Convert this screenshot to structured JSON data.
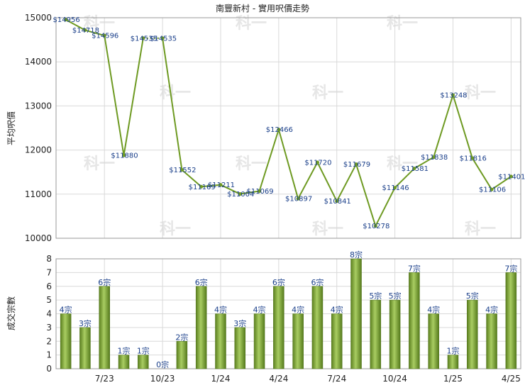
{
  "chart_data": [
    {
      "type": "line",
      "title": "南豐新村 - 實用呎價走勢",
      "ylabel": "平均呎價",
      "ylim": [
        10000,
        15000
      ],
      "yticks": [
        10000,
        11000,
        12000,
        13000,
        14000,
        15000
      ],
      "values": [
        14956,
        14718,
        14596,
        11880,
        14535,
        14535,
        11552,
        11169,
        11211,
        11004,
        11069,
        12466,
        10897,
        11720,
        10841,
        11679,
        10278,
        11146,
        11581,
        11838,
        13248,
        11816,
        11106,
        11401
      ],
      "labels": [
        "$14956",
        "$14718",
        "$14596",
        "$11880",
        "$14535",
        "$14535",
        "$11552",
        "$11169",
        "$11211",
        "$11004",
        "$11069",
        "$12466",
        "$10897",
        "$11720",
        "$10841",
        "$11679",
        "$10278",
        "$11146",
        "$11581",
        "$11838",
        "$13248",
        "$11816",
        "$11106",
        "$11401"
      ],
      "gap_after_index": 4,
      "color": "#6e9a22",
      "grid": true
    },
    {
      "type": "bar",
      "ylabel": "成交宗數",
      "ylim": [
        0,
        8
      ],
      "yticks": [
        0,
        1,
        2,
        3,
        4,
        5,
        6,
        7,
        8
      ],
      "values": [
        4,
        3,
        6,
        1,
        1,
        0,
        2,
        6,
        4,
        3,
        4,
        6,
        4,
        6,
        4,
        8,
        5,
        5,
        7,
        4,
        1,
        5,
        4,
        7
      ],
      "labels": [
        "4宗",
        "3宗",
        "6宗",
        "1宗",
        "1宗",
        "0宗",
        "2宗",
        "6宗",
        "4宗",
        "3宗",
        "4宗",
        "6宗",
        "4宗",
        "6宗",
        "4宗",
        "8宗",
        "5宗",
        "5宗",
        "7宗",
        "4宗",
        "1宗",
        "5宗",
        "4宗",
        "7宗"
      ],
      "xticks": [
        "7/23",
        "10/23",
        "1/24",
        "4/24",
        "7/24",
        "10/24",
        "1/25",
        "4/25"
      ],
      "xtick_indices": [
        2,
        5,
        8,
        11,
        14,
        17,
        20,
        23
      ],
      "color": "#7ea43a",
      "grid": true
    }
  ],
  "watermark": "科一"
}
